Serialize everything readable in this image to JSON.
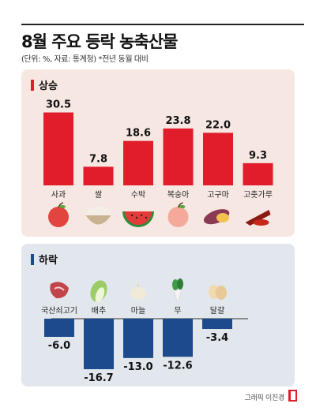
{
  "title": "8월 주요 등락 농축산물",
  "subtitle": "(단위: %, 자료: 통계청)   *전년 동월 대비",
  "credit": "그래픽 이진경",
  "colors": {
    "up": "#e11d2c",
    "down": "#1c4a8c"
  },
  "chart_data": [
    {
      "type": "bar",
      "title": "상승",
      "categories": [
        "사과",
        "쌀",
        "수박",
        "복숭아",
        "고구마",
        "고춧가루"
      ],
      "values": [
        30.5,
        7.8,
        18.6,
        23.8,
        22.0,
        9.3
      ],
      "value_labels": [
        "30.5",
        "7.8",
        "18.6",
        "23.8",
        "22.0",
        "9.3"
      ],
      "icons": [
        "apple-icon",
        "rice-bowl-icon",
        "watermelon-icon",
        "peach-icon",
        "sweet-potato-icon",
        "chili-powder-icon"
      ],
      "ylim": [
        0,
        32
      ]
    },
    {
      "type": "bar",
      "title": "하락",
      "categories": [
        "국산쇠고기",
        "배추",
        "마늘",
        "무",
        "달걀"
      ],
      "values": [
        -6.0,
        -16.7,
        -13.0,
        -12.6,
        -3.4
      ],
      "value_labels": [
        "-6.0",
        "-16.7",
        "-13.0",
        "-12.6",
        "-3.4"
      ],
      "icons": [
        "beef-icon",
        "cabbage-icon",
        "garlic-icon",
        "radish-icon",
        "egg-icon"
      ],
      "ylim": [
        -18,
        0
      ]
    }
  ]
}
